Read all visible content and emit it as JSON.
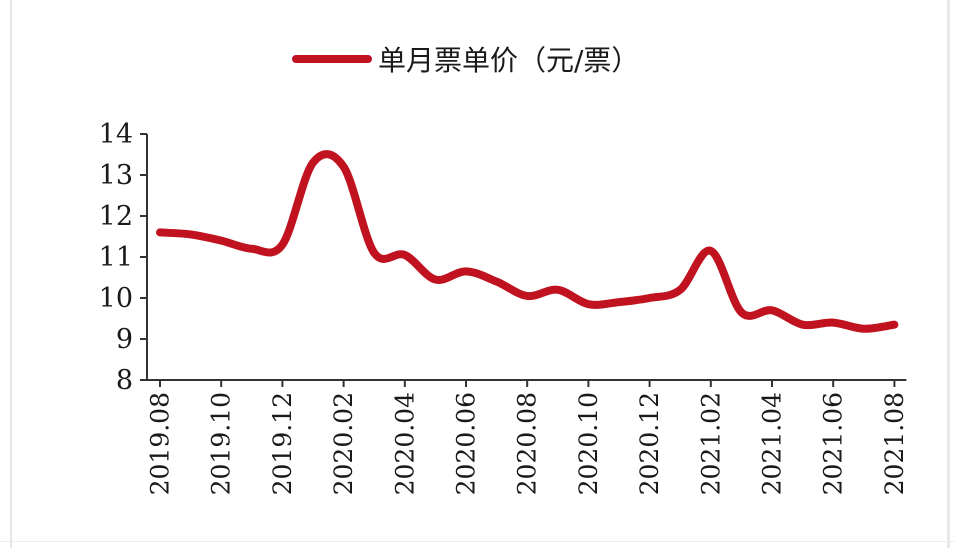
{
  "chart_data": {
    "type": "line",
    "legend_label": "单月票单价（元/票）",
    "legend_position": "top-center",
    "series_color": "#c1121f",
    "grid": false,
    "ylim": [
      8,
      14
    ],
    "yticks": [
      8,
      9,
      10,
      11,
      12,
      13,
      14
    ],
    "xtick_labels": [
      "2019.08",
      "2019.10",
      "2019.12",
      "2020.02",
      "2020.04",
      "2020.06",
      "2020.08",
      "2020.10",
      "2020.12",
      "2021.02",
      "2021.04",
      "2021.06",
      "2021.08"
    ],
    "x": [
      "2019.08",
      "2019.09",
      "2019.10",
      "2019.11",
      "2019.12",
      "2020.01",
      "2020.02",
      "2020.03",
      "2020.04",
      "2020.05",
      "2020.06",
      "2020.07",
      "2020.08",
      "2020.09",
      "2020.10",
      "2020.11",
      "2020.12",
      "2021.01",
      "2021.02",
      "2021.03",
      "2021.04",
      "2021.05",
      "2021.06",
      "2021.07",
      "2021.08"
    ],
    "series": [
      {
        "values": [
          11.6,
          11.55,
          11.4,
          11.2,
          11.3,
          13.3,
          13.2,
          11.1,
          11.05,
          10.45,
          10.65,
          10.4,
          10.05,
          10.2,
          9.85,
          9.9,
          10.0,
          10.2,
          11.15,
          9.65,
          9.7,
          9.35,
          9.4,
          9.25,
          9.35
        ]
      }
    ]
  }
}
